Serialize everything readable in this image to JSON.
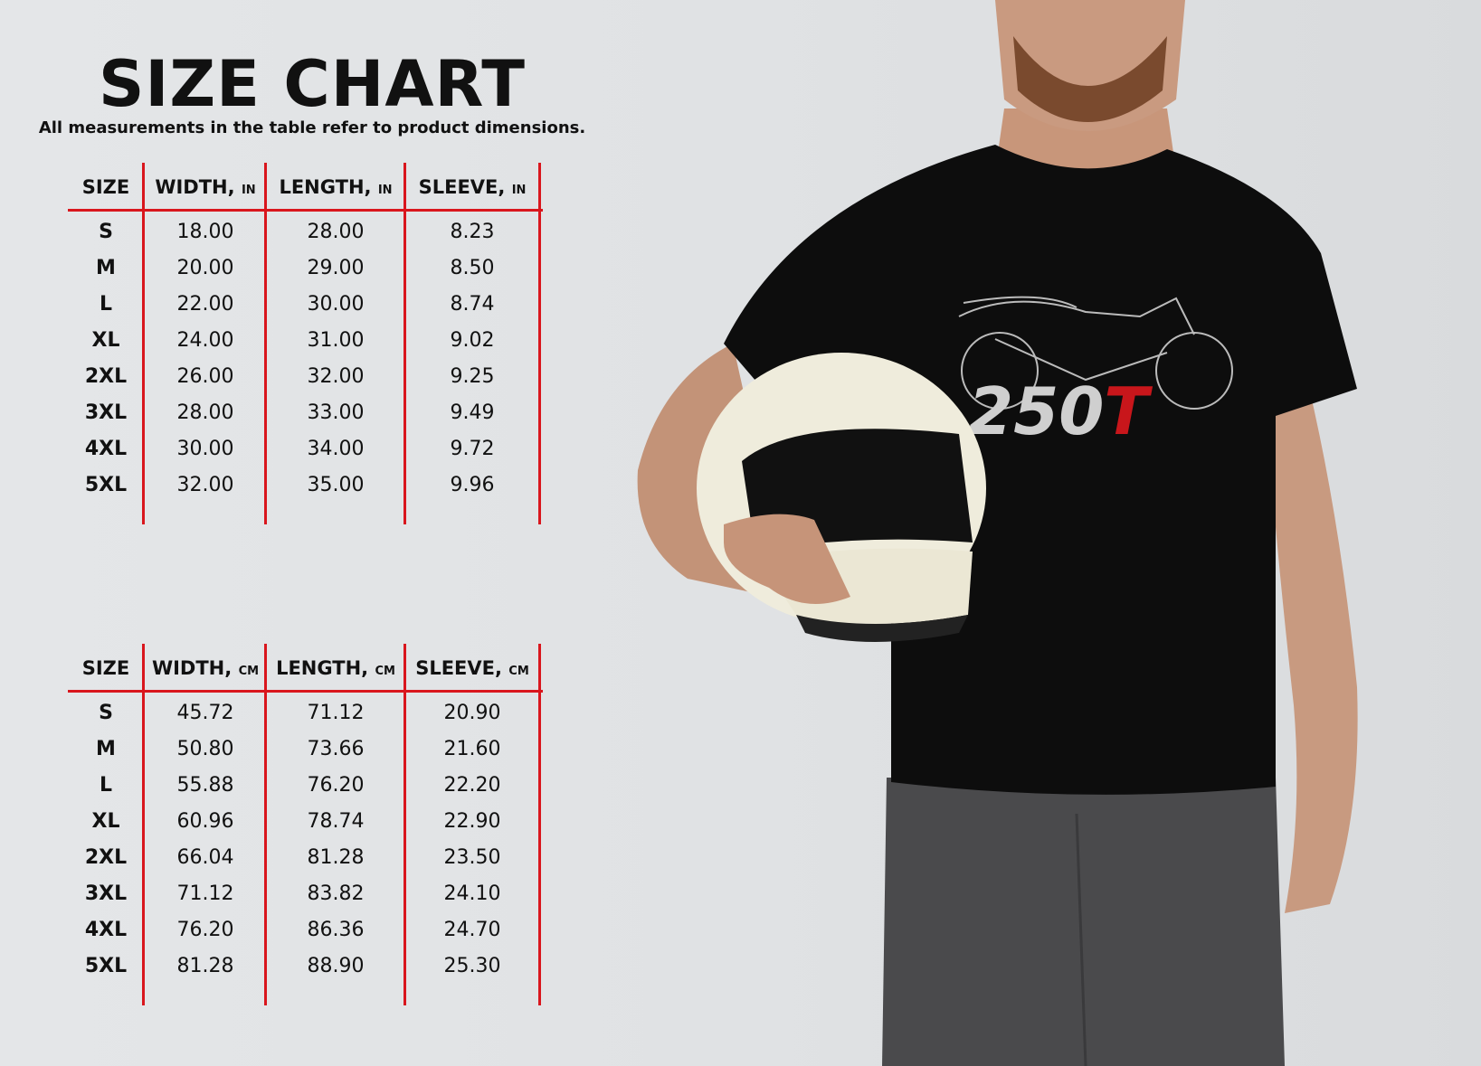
{
  "title": "SIZE CHART",
  "subtitle": "All measurements in the table refer to product dimensions.",
  "accent_color": "#d9161d",
  "tables": [
    {
      "headers": [
        {
          "label": "SIZE",
          "unit": ""
        },
        {
          "label": "WIDTH,",
          "unit": "IN"
        },
        {
          "label": "LENGTH,",
          "unit": "IN"
        },
        {
          "label": "SLEEVE,",
          "unit": "IN"
        }
      ],
      "rows": [
        [
          "S",
          "18.00",
          "28.00",
          "8.23"
        ],
        [
          "M",
          "20.00",
          "29.00",
          "8.50"
        ],
        [
          "L",
          "22.00",
          "30.00",
          "8.74"
        ],
        [
          "XL",
          "24.00",
          "31.00",
          "9.02"
        ],
        [
          "2XL",
          "26.00",
          "32.00",
          "9.25"
        ],
        [
          "3XL",
          "28.00",
          "33.00",
          "9.49"
        ],
        [
          "4XL",
          "30.00",
          "34.00",
          "9.72"
        ],
        [
          "5XL",
          "32.00",
          "35.00",
          "9.96"
        ]
      ]
    },
    {
      "headers": [
        {
          "label": "SIZE",
          "unit": ""
        },
        {
          "label": "WIDTH,",
          "unit": "CM"
        },
        {
          "label": "LENGTH,",
          "unit": "CM"
        },
        {
          "label": "SLEEVE,",
          "unit": "CM"
        }
      ],
      "rows": [
        [
          "S",
          "45.72",
          "71.12",
          "20.90"
        ],
        [
          "M",
          "50.80",
          "73.66",
          "21.60"
        ],
        [
          "L",
          "55.88",
          "76.20",
          "22.20"
        ],
        [
          "XL",
          "60.96",
          "78.74",
          "22.90"
        ],
        [
          "2XL",
          "66.04",
          "81.28",
          "23.50"
        ],
        [
          "3XL",
          "71.12",
          "83.82",
          "24.10"
        ],
        [
          "4XL",
          "76.20",
          "86.36",
          "24.70"
        ],
        [
          "5XL",
          "81.28",
          "88.90",
          "25.30"
        ]
      ]
    }
  ],
  "product_photo": {
    "shirt_color": "#0d0d0d",
    "logo": "250T",
    "logo_accent": "#c8161b"
  }
}
